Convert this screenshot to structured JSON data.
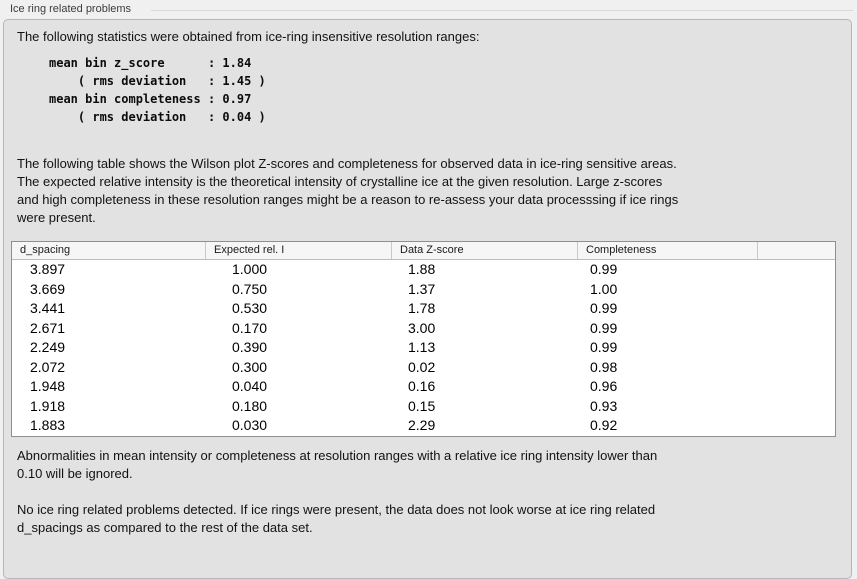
{
  "colors": {
    "outer_bg": "#f0f0f0",
    "panel_bg": "#e2e2e2",
    "panel_border": "#b6b6b6",
    "table_border": "#8f8f8f",
    "header_bg": "#f6f6f6",
    "text": "#141414"
  },
  "section": {
    "title": "Ice ring related problems"
  },
  "panel": {
    "intro": "The following statistics were obtained from ice-ring insensitive resolution ranges:",
    "stats_lines": [
      "mean bin z_score      : 1.84",
      "    ( rms deviation   : 1.45 )",
      "mean bin completeness : 0.97",
      "    ( rms deviation   : 0.04 )"
    ],
    "table_note": "The following table shows the Wilson plot Z-scores and completeness for observed data in ice-ring sensitive areas.\nThe expected relative intensity is the theoretical intensity of crystalline ice at the given resolution. Large z-scores\nand high completeness in these resolution ranges might be a reason to re-assess your data processsing if ice rings\nwere present.",
    "table": {
      "columns": [
        "d_spacing",
        "Expected rel. I",
        "Data Z-score",
        "Completeness"
      ],
      "rows": [
        [
          "3.897",
          "1.000",
          "1.88",
          "0.99"
        ],
        [
          "3.669",
          "0.750",
          "1.37",
          "1.00"
        ],
        [
          "3.441",
          "0.530",
          "1.78",
          "0.99"
        ],
        [
          "2.671",
          "0.170",
          "3.00",
          "0.99"
        ],
        [
          "2.249",
          "0.390",
          "1.13",
          "0.99"
        ],
        [
          "2.072",
          "0.300",
          "0.02",
          "0.98"
        ],
        [
          "1.948",
          "0.040",
          "0.16",
          "0.96"
        ],
        [
          "1.918",
          "0.180",
          "0.15",
          "0.93"
        ],
        [
          "1.883",
          "0.030",
          "2.29",
          "0.92"
        ]
      ]
    },
    "ignore_note": "Abnormalities in mean intensity or completeness at resolution ranges with a relative ice ring intensity lower than\n0.10 will be ignored.",
    "conclusion": "No ice ring related problems detected. If ice rings were present, the data does not look worse at ice ring related\nd_spacings as compared to the rest of the data set."
  }
}
